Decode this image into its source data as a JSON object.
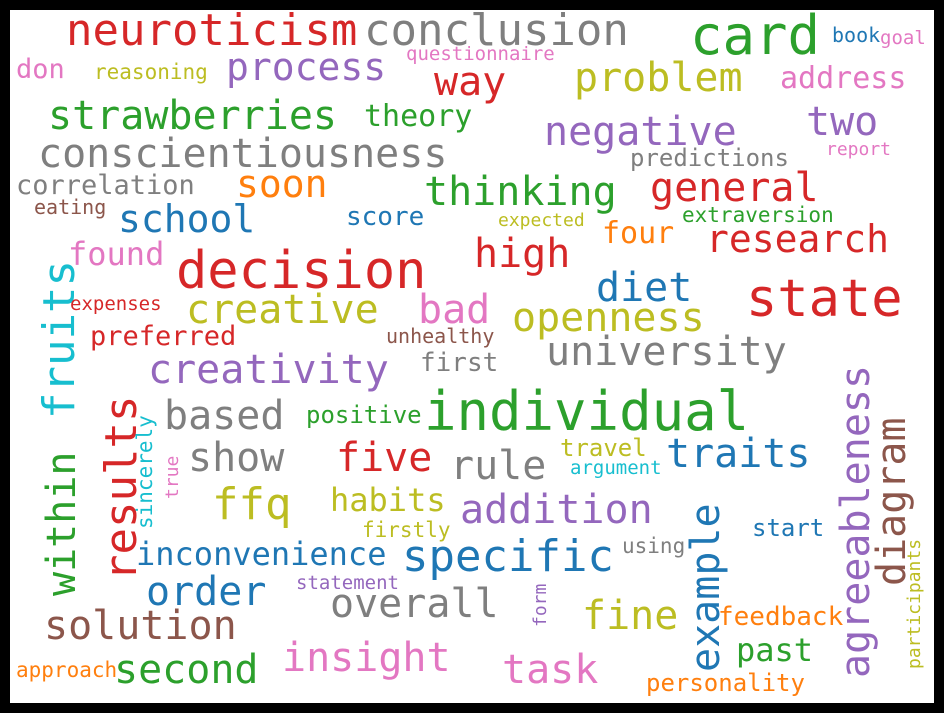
{
  "palette": {
    "blue": "#1f77b4",
    "orange": "#ff7f0e",
    "green": "#2ca02c",
    "red": "#d62728",
    "purple": "#9467bd",
    "brown": "#8c564b",
    "pink": "#e377c2",
    "gray": "#7f7f7f",
    "olive": "#bcbd22",
    "cyan": "#17becf"
  },
  "words": [
    {
      "id": "neuroticism",
      "text": "neuroticism",
      "color": "red"
    },
    {
      "id": "conclusion",
      "text": "conclusion",
      "color": "gray"
    },
    {
      "id": "card",
      "text": "card",
      "color": "green"
    },
    {
      "id": "book",
      "text": "book",
      "color": "blue"
    },
    {
      "id": "goal",
      "text": "goal",
      "color": "pink"
    },
    {
      "id": "don",
      "text": "don",
      "color": "pink"
    },
    {
      "id": "reasoning",
      "text": "reasoning",
      "color": "olive"
    },
    {
      "id": "process",
      "text": "process",
      "color": "purple"
    },
    {
      "id": "questionnaire",
      "text": "questionnaire",
      "color": "pink"
    },
    {
      "id": "way",
      "text": "way",
      "color": "red"
    },
    {
      "id": "problem",
      "text": "problem",
      "color": "olive"
    },
    {
      "id": "address",
      "text": "address",
      "color": "pink"
    },
    {
      "id": "strawberries",
      "text": "strawberries",
      "color": "green"
    },
    {
      "id": "theory",
      "text": "theory",
      "color": "green"
    },
    {
      "id": "negative",
      "text": "negative",
      "color": "purple"
    },
    {
      "id": "two",
      "text": "two",
      "color": "purple"
    },
    {
      "id": "conscientiousness",
      "text": "conscientiousness",
      "color": "gray"
    },
    {
      "id": "predictions",
      "text": "predictions",
      "color": "gray"
    },
    {
      "id": "report",
      "text": "report",
      "color": "pink"
    },
    {
      "id": "correlation",
      "text": "correlation",
      "color": "gray"
    },
    {
      "id": "soon",
      "text": "soon",
      "color": "orange"
    },
    {
      "id": "thinking",
      "text": "thinking",
      "color": "green"
    },
    {
      "id": "general",
      "text": "general",
      "color": "red"
    },
    {
      "id": "eating",
      "text": "eating",
      "color": "brown"
    },
    {
      "id": "school",
      "text": "school",
      "color": "blue"
    },
    {
      "id": "score",
      "text": "score",
      "color": "blue"
    },
    {
      "id": "expected",
      "text": "expected",
      "color": "olive"
    },
    {
      "id": "extraversion",
      "text": "extraversion",
      "color": "green"
    },
    {
      "id": "four",
      "text": "four",
      "color": "orange"
    },
    {
      "id": "research",
      "text": "research",
      "color": "red"
    },
    {
      "id": "found",
      "text": "found",
      "color": "pink"
    },
    {
      "id": "decision",
      "text": "decision",
      "color": "red"
    },
    {
      "id": "high",
      "text": "high",
      "color": "red"
    },
    {
      "id": "fruits",
      "text": "fruits",
      "color": "cyan"
    },
    {
      "id": "diet",
      "text": "diet",
      "color": "blue"
    },
    {
      "id": "state",
      "text": "state",
      "color": "red"
    },
    {
      "id": "expenses",
      "text": "expenses",
      "color": "red"
    },
    {
      "id": "creative",
      "text": "creative",
      "color": "olive"
    },
    {
      "id": "bad",
      "text": "bad",
      "color": "pink"
    },
    {
      "id": "openness",
      "text": "openness",
      "color": "olive"
    },
    {
      "id": "preferred",
      "text": "preferred",
      "color": "red"
    },
    {
      "id": "unhealthy",
      "text": "unhealthy",
      "color": "brown"
    },
    {
      "id": "university",
      "text": "university",
      "color": "gray"
    },
    {
      "id": "creativity",
      "text": "creativity",
      "color": "purple"
    },
    {
      "id": "first",
      "text": "first",
      "color": "gray"
    },
    {
      "id": "agreeableness",
      "text": "agreeableness",
      "color": "purple"
    },
    {
      "id": "within",
      "text": "within",
      "color": "green"
    },
    {
      "id": "results",
      "text": "results",
      "color": "red"
    },
    {
      "id": "sincerely",
      "text": "sincerely",
      "color": "cyan"
    },
    {
      "id": "based",
      "text": "based",
      "color": "gray"
    },
    {
      "id": "positive",
      "text": "positive",
      "color": "green"
    },
    {
      "id": "individual",
      "text": "individual",
      "color": "green"
    },
    {
      "id": "diagram",
      "text": "diagram",
      "color": "brown"
    },
    {
      "id": "true",
      "text": "true",
      "color": "pink"
    },
    {
      "id": "show",
      "text": "show",
      "color": "gray"
    },
    {
      "id": "five",
      "text": "five",
      "color": "red"
    },
    {
      "id": "rule",
      "text": "rule",
      "color": "gray"
    },
    {
      "id": "travel",
      "text": "travel",
      "color": "olive"
    },
    {
      "id": "traits",
      "text": "traits",
      "color": "blue"
    },
    {
      "id": "argument",
      "text": "argument",
      "color": "cyan"
    },
    {
      "id": "ffq",
      "text": "ffq",
      "color": "olive"
    },
    {
      "id": "habits",
      "text": "habits",
      "color": "olive"
    },
    {
      "id": "addition",
      "text": "addition",
      "color": "purple"
    },
    {
      "id": "example",
      "text": "example",
      "color": "blue"
    },
    {
      "id": "firstly",
      "text": "firstly",
      "color": "olive"
    },
    {
      "id": "start",
      "text": "start",
      "color": "blue"
    },
    {
      "id": "inconvenience",
      "text": "inconvenience",
      "color": "blue"
    },
    {
      "id": "specific",
      "text": "specific",
      "color": "blue"
    },
    {
      "id": "using",
      "text": "using",
      "color": "gray"
    },
    {
      "id": "participants",
      "text": "participants",
      "color": "olive"
    },
    {
      "id": "order",
      "text": "order",
      "color": "blue"
    },
    {
      "id": "statement",
      "text": "statement",
      "color": "purple"
    },
    {
      "id": "overall",
      "text": "overall",
      "color": "gray"
    },
    {
      "id": "fine",
      "text": "fine",
      "color": "olive"
    },
    {
      "id": "form",
      "text": "form",
      "color": "purple"
    },
    {
      "id": "feedback",
      "text": "feedback",
      "color": "orange"
    },
    {
      "id": "solution",
      "text": "solution",
      "color": "brown"
    },
    {
      "id": "past",
      "text": "past",
      "color": "green"
    },
    {
      "id": "insight",
      "text": "insight",
      "color": "pink"
    },
    {
      "id": "approach",
      "text": "approach",
      "color": "orange"
    },
    {
      "id": "second",
      "text": "second",
      "color": "green"
    },
    {
      "id": "task",
      "text": "task",
      "color": "pink"
    },
    {
      "id": "personality",
      "text": "personality",
      "color": "orange"
    }
  ]
}
